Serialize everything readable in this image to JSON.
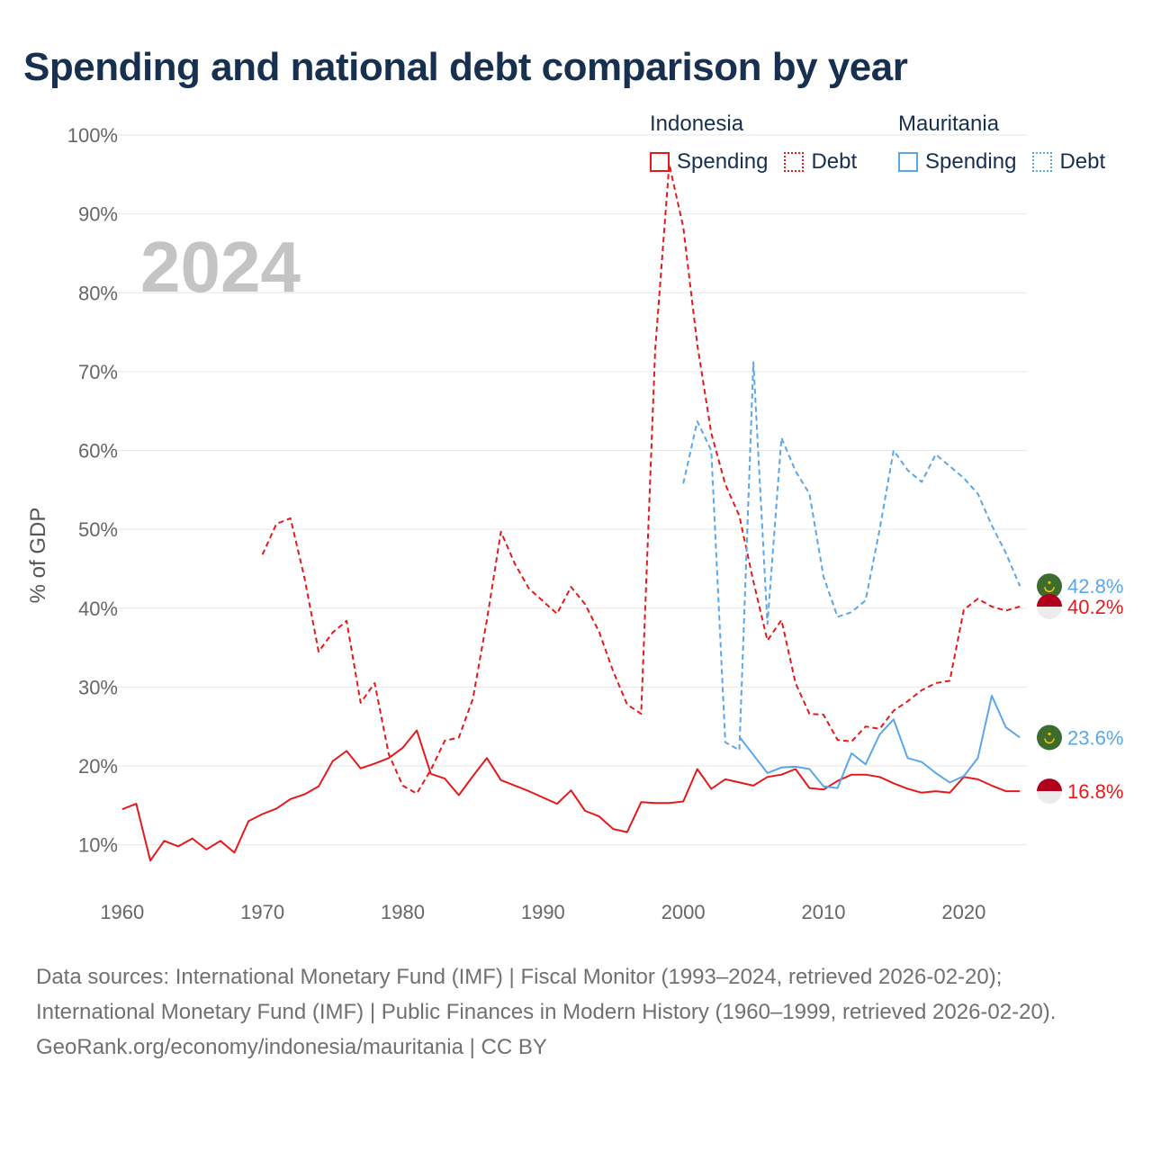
{
  "title": "Spending and national debt comparison by year",
  "legend": {
    "groups": [
      {
        "name": "Indonesia",
        "items": [
          {
            "label": "Spending",
            "style": "solid",
            "color": "#e31a1c"
          },
          {
            "label": "Debt",
            "style": "dotted",
            "color": "#e31a1c"
          }
        ]
      },
      {
        "name": "Mauritania",
        "items": [
          {
            "label": "Spending",
            "style": "solid",
            "color": "#5aa6e6"
          },
          {
            "label": "Debt",
            "style": "dotted",
            "color": "#5aa6e6"
          }
        ]
      }
    ]
  },
  "year_label": "2024",
  "sources": {
    "line1": "Data sources: International Monetary Fund (IMF) | Fiscal Monitor (1993–2024, retrieved 2026-02-20); International Monetary Fund (IMF) | Public Finances in Modern History (1960–1999, retrieved 2026-02-20).",
    "line2": "GeoRank.org/economy/indonesia/mauritania | CC BY"
  },
  "chart_data": {
    "type": "line",
    "title": "Spending and national debt comparison by year",
    "ylabel": "% of GDP",
    "xlabel": "",
    "xlim": [
      1959.5,
      2024.5
    ],
    "ylim": [
      3,
      100
    ],
    "x_ticks": [
      1960,
      1970,
      1980,
      1990,
      2000,
      2010,
      2020
    ],
    "y_ticks": [
      10,
      20,
      30,
      40,
      50,
      60,
      70,
      80,
      90,
      100
    ],
    "y_tick_suffix": "%",
    "grid": true,
    "series": [
      {
        "name": "Indonesia Spending",
        "color": "#e31a1c",
        "dash": "none",
        "start_year": 1960,
        "values": [
          14.5,
          15.2,
          8.0,
          10.5,
          9.8,
          10.8,
          9.4,
          10.5,
          9.0,
          13.0,
          13.9,
          14.6,
          15.8,
          16.4,
          17.4,
          20.6,
          21.9,
          19.7,
          20.3,
          21.0,
          22.3,
          24.5,
          19.0,
          18.4,
          16.3,
          18.7,
          21.0,
          18.2,
          17.5,
          16.8,
          16.0,
          15.2,
          16.9,
          14.3,
          13.6,
          12.0,
          11.6,
          15.4,
          15.3,
          15.3,
          15.5,
          19.6,
          17.1,
          18.3,
          17.9,
          17.5,
          18.6,
          18.9,
          19.6,
          17.2,
          17.0,
          18.1,
          18.9,
          18.9,
          18.6,
          17.8,
          17.1,
          16.6,
          16.8,
          16.6,
          18.6,
          18.3,
          17.5,
          16.8,
          16.8
        ]
      },
      {
        "name": "Indonesia Debt",
        "color": "#e31a1c",
        "dash": "dashed",
        "start_year": 1970,
        "values": [
          46.8,
          50.7,
          51.4,
          43.8,
          34.5,
          36.9,
          38.4,
          28.0,
          30.5,
          21.5,
          17.5,
          16.5,
          19.5,
          23.2,
          23.6,
          28.5,
          38.5,
          49.7,
          45.6,
          42.5,
          40.9,
          39.3,
          42.7,
          40.5,
          37.0,
          32.0,
          27.8,
          26.6,
          72.8,
          96.3,
          88.3,
          73.4,
          62.2,
          55.7,
          51.7,
          43.4,
          35.9,
          38.5,
          30.5,
          26.6,
          26.5,
          23.3,
          23.1,
          25.0,
          24.7,
          27.0,
          28.2,
          29.6,
          30.5,
          30.8,
          39.8,
          41.2,
          40.2,
          39.7,
          40.2
        ]
      },
      {
        "name": "Mauritania Spending",
        "color": "#5aa6e6",
        "dash": "none",
        "start_year": 2004,
        "values": [
          23.7,
          21.4,
          19.1,
          19.8,
          19.9,
          19.6,
          17.4,
          17.2,
          21.6,
          20.2,
          24.0,
          25.9,
          21.0,
          20.5,
          19.1,
          17.9,
          18.7,
          21.0,
          28.9,
          24.9,
          23.6
        ]
      },
      {
        "name": "Mauritania Debt",
        "color": "#5aa6e6",
        "dash": "dashed",
        "start_year": 2000,
        "values": [
          55.8,
          63.7,
          60.0,
          23.0,
          22.0,
          71.2,
          38.0,
          61.6,
          57.4,
          54.5,
          44.0,
          38.9,
          39.5,
          41.0,
          50.0,
          60.0,
          57.5,
          56.0,
          59.5,
          58.0,
          56.5,
          54.5,
          50.5,
          47.0,
          42.8
        ]
      }
    ],
    "end_labels": [
      {
        "series": "Mauritania Debt",
        "text": "42.8%",
        "value": 42.8,
        "country": "Mauritania"
      },
      {
        "series": "Indonesia Debt",
        "text": "40.2%",
        "value": 40.2,
        "country": "Indonesia"
      },
      {
        "series": "Mauritania Spending",
        "text": "23.6%",
        "value": 23.6,
        "country": "Mauritania"
      },
      {
        "series": "Indonesia Spending",
        "text": "16.8%",
        "value": 16.8,
        "country": "Indonesia"
      }
    ]
  }
}
